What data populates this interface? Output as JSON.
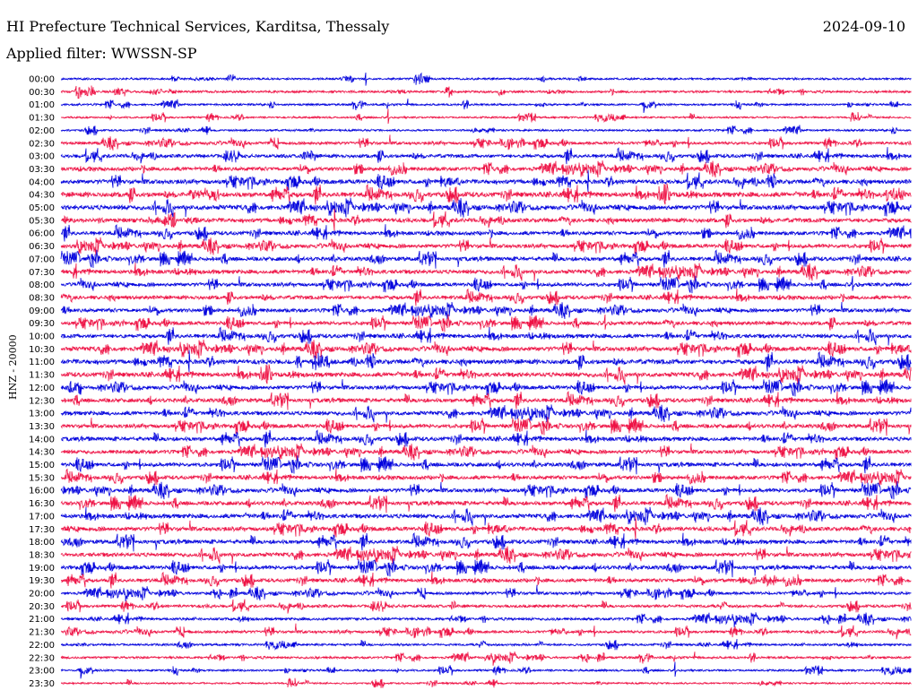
{
  "header": {
    "station": "HI Prefecture Technical Services, Karditsa, Thessaly",
    "date": "2024-09-10",
    "filter": "Applied filter: WWSSN-SP"
  },
  "chart_data": {
    "type": "line",
    "title": "HI Prefecture Technical Services, Karditsa, Thessaly",
    "subtitle": "Applied filter: WWSSN-SP",
    "ylabel": "HNZ - 20000",
    "y_tick_labels": [
      "00:00",
      "00:30",
      "01:00",
      "01:30",
      "02:00",
      "02:30",
      "03:00",
      "03:30",
      "04:00",
      "04:30",
      "05:00",
      "05:30",
      "06:00",
      "06:30",
      "07:00",
      "07:30",
      "08:00",
      "08:30",
      "09:00",
      "09:30",
      "10:00",
      "10:30",
      "11:00",
      "11:30",
      "12:00",
      "12:30",
      "13:00",
      "13:30",
      "14:00",
      "14:30",
      "15:00",
      "15:30",
      "16:00",
      "16:30",
      "17:00",
      "17:30",
      "18:00",
      "18:30",
      "19:00",
      "19:30",
      "20:00",
      "20:30",
      "21:00",
      "21:30",
      "22:00",
      "22:30",
      "23:00",
      "23:30"
    ],
    "trace_colors": [
      "#0000dd",
      "#ee1144"
    ],
    "relative_activity": [
      0.15,
      0.2,
      0.15,
      0.12,
      0.15,
      0.35,
      0.5,
      0.55,
      0.7,
      0.8,
      0.75,
      0.65,
      0.55,
      0.6,
      0.6,
      0.6,
      0.55,
      0.55,
      0.55,
      0.55,
      0.6,
      0.7,
      0.75,
      0.7,
      0.6,
      0.6,
      0.6,
      0.6,
      0.6,
      0.55,
      0.6,
      0.55,
      0.6,
      0.6,
      0.65,
      0.65,
      0.6,
      0.6,
      0.6,
      0.5,
      0.35,
      0.35,
      0.3,
      0.3,
      0.2,
      0.2,
      0.15,
      0.1
    ],
    "grid": false
  }
}
